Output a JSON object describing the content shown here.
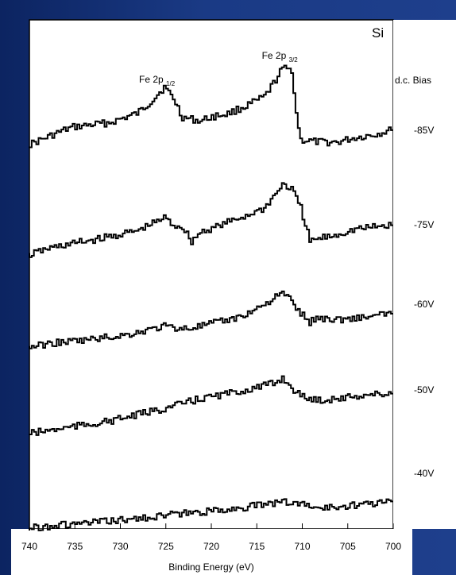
{
  "chart_data": {
    "type": "line",
    "title": "",
    "panel_label": "Si",
    "xlabel": "Binding Energy (eV)",
    "ylabel": "",
    "xlim": [
      740,
      700
    ],
    "x_reversed": true,
    "x_ticks": [
      740,
      735,
      730,
      725,
      720,
      715,
      710,
      705,
      700
    ],
    "y_ticks": [],
    "grid": false,
    "legend_title": "d.c. Bias",
    "annotations": [
      {
        "text": "Fe 2p",
        "sub": "1/2",
        "x": 725.5
      },
      {
        "text": "Fe 2p",
        "sub": "3/2",
        "x": 712
      }
    ],
    "series": [
      {
        "name": "-85V",
        "x": [
          740,
          738,
          736,
          735,
          733,
          731,
          730,
          728,
          727,
          726,
          725,
          724,
          723,
          721,
          720,
          718,
          716,
          714,
          713,
          712,
          711,
          710.5,
          710,
          708,
          706,
          704,
          702,
          700
        ],
        "y": [
          0.18,
          0.28,
          0.38,
          0.42,
          0.45,
          0.48,
          0.52,
          0.6,
          0.7,
          0.82,
          0.95,
          0.8,
          0.55,
          0.5,
          0.55,
          0.6,
          0.7,
          0.82,
          1.0,
          1.2,
          1.18,
          0.6,
          0.25,
          0.22,
          0.22,
          0.28,
          0.32,
          0.38
        ]
      },
      {
        "name": "-75V",
        "x": [
          740,
          738,
          735,
          732,
          730,
          728,
          726,
          725,
          724,
          723,
          722,
          721,
          720,
          718,
          716,
          714,
          713,
          712,
          711,
          710,
          709,
          708,
          706,
          704,
          702,
          700
        ],
        "y": [
          0.0,
          0.07,
          0.13,
          0.18,
          0.22,
          0.26,
          0.35,
          0.4,
          0.32,
          0.3,
          0.15,
          0.25,
          0.28,
          0.35,
          0.42,
          0.5,
          0.62,
          0.75,
          0.7,
          0.5,
          0.15,
          0.18,
          0.22,
          0.28,
          0.3,
          0.32
        ]
      },
      {
        "name": "-60V",
        "x": [
          740,
          737,
          734,
          731,
          729,
          727,
          725,
          723,
          721,
          719,
          717,
          715,
          714,
          713,
          712,
          711,
          710,
          709,
          708,
          706,
          704,
          702,
          700
        ],
        "y": [
          0.0,
          0.05,
          0.08,
          0.12,
          0.15,
          0.2,
          0.25,
          0.22,
          0.25,
          0.3,
          0.35,
          0.45,
          0.52,
          0.58,
          0.65,
          0.55,
          0.4,
          0.3,
          0.35,
          0.33,
          0.35,
          0.37,
          0.4
        ]
      },
      {
        "name": "-50V",
        "x": [
          740,
          737,
          734,
          731,
          729,
          727,
          725,
          723,
          721,
          719,
          717,
          715,
          713,
          712,
          711,
          710,
          709,
          708,
          706,
          704,
          702,
          700
        ],
        "y": [
          0.0,
          0.05,
          0.1,
          0.15,
          0.2,
          0.25,
          0.3,
          0.36,
          0.42,
          0.46,
          0.5,
          0.55,
          0.6,
          0.67,
          0.55,
          0.45,
          0.42,
          0.4,
          0.42,
          0.45,
          0.47,
          0.48
        ]
      },
      {
        "name": "-40V",
        "x": [
          740,
          737,
          735,
          733,
          730,
          728,
          726,
          724,
          722,
          720,
          718,
          716,
          714,
          712,
          711,
          710,
          708,
          706,
          704,
          702,
          700
        ],
        "y": [
          0.0,
          0.05,
          0.07,
          0.1,
          0.14,
          0.17,
          0.21,
          0.25,
          0.27,
          0.3,
          0.34,
          0.38,
          0.42,
          0.48,
          0.46,
          0.44,
          0.36,
          0.38,
          0.42,
          0.45,
          0.48
        ]
      }
    ]
  }
}
